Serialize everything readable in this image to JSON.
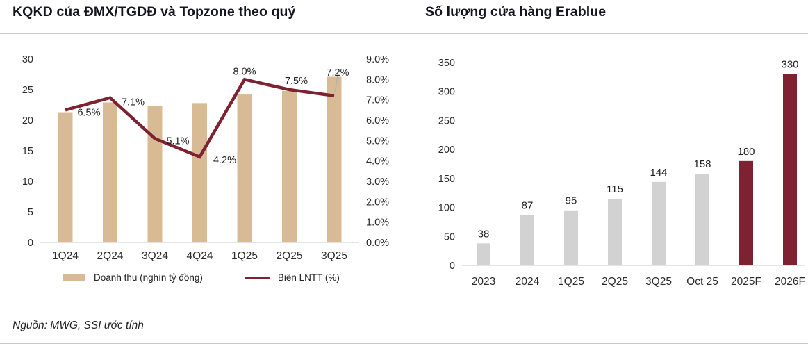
{
  "header": {
    "left_title": "KQKD của ĐMX/TGDĐ và Topzone theo quý",
    "right_title": "Số lượng cửa hàng Erablue"
  },
  "footer": {
    "source": "Nguồn: MWG, SSI ước tính"
  },
  "colors": {
    "bar_tan": "#D8BA95",
    "line_maroon": "#7E2231",
    "bar_gray": "#D2D2D2",
    "bar_maroon": "#7E2231",
    "axis_line": "#DCDCDC",
    "tick_text": "#2b2b2b",
    "label_text": "#1f1f1f",
    "leader_line": "#b0b0b0"
  },
  "chart_data": [
    {
      "type": "bar",
      "subtype": "bar+line-dual-axis",
      "title": "KQKD của ĐMX/TGDĐ và Topzone theo quý",
      "categories": [
        "1Q24",
        "2Q24",
        "3Q24",
        "4Q24",
        "1Q25",
        "2Q25",
        "3Q25"
      ],
      "series": [
        {
          "name": "Doanh thu (nghìn tỷ đồng)",
          "type": "bar",
          "axis": "left",
          "values": [
            21.3,
            22.9,
            22.3,
            22.8,
            24.2,
            24.8,
            27.1
          ]
        },
        {
          "name": "Biên LNTT (%)",
          "type": "line",
          "axis": "right",
          "values": [
            6.5,
            7.1,
            5.1,
            4.2,
            8.0,
            7.5,
            7.2
          ],
          "point_labels": [
            "6.5%",
            "7.1%",
            "5.1%",
            "4.2%",
            "8.0%",
            "7.5%",
            "7.2%"
          ]
        }
      ],
      "left_axis": {
        "min": 0,
        "max": 30,
        "ticks": [
          "0",
          "5",
          "10",
          "15",
          "20",
          "25",
          "30"
        ]
      },
      "right_axis": {
        "min": 0,
        "max": 9,
        "ticks": [
          "0.0%",
          "1.0%",
          "2.0%",
          "3.0%",
          "4.0%",
          "5.0%",
          "6.0%",
          "7.0%",
          "8.0%",
          "9.0%"
        ]
      },
      "grid": false,
      "legend_position": "bottom",
      "legend": [
        {
          "label": "Doanh thu (nghìn tỷ đồng)",
          "swatch": "bar",
          "color": "#D8BA95"
        },
        {
          "label": "Biên LNTT (%)",
          "swatch": "line",
          "color": "#7E2231"
        }
      ]
    },
    {
      "type": "bar",
      "title": "Số lượng cửa hàng Erablue",
      "categories": [
        "2023",
        "2024",
        "1Q25",
        "2Q25",
        "3Q25",
        "Oct 25",
        "2025F",
        "2026F"
      ],
      "values": [
        38,
        87,
        95,
        115,
        144,
        158,
        180,
        330
      ],
      "value_labels": [
        "38",
        "87",
        "95",
        "115",
        "144",
        "158",
        "180",
        "330"
      ],
      "bar_colors": [
        "gray",
        "gray",
        "gray",
        "gray",
        "gray",
        "gray",
        "maroon",
        "maroon"
      ],
      "ylim": [
        0,
        350
      ],
      "yticks": [
        "0",
        "50",
        "100",
        "150",
        "200",
        "250",
        "300",
        "350"
      ],
      "grid": false,
      "legend_position": "none"
    }
  ]
}
